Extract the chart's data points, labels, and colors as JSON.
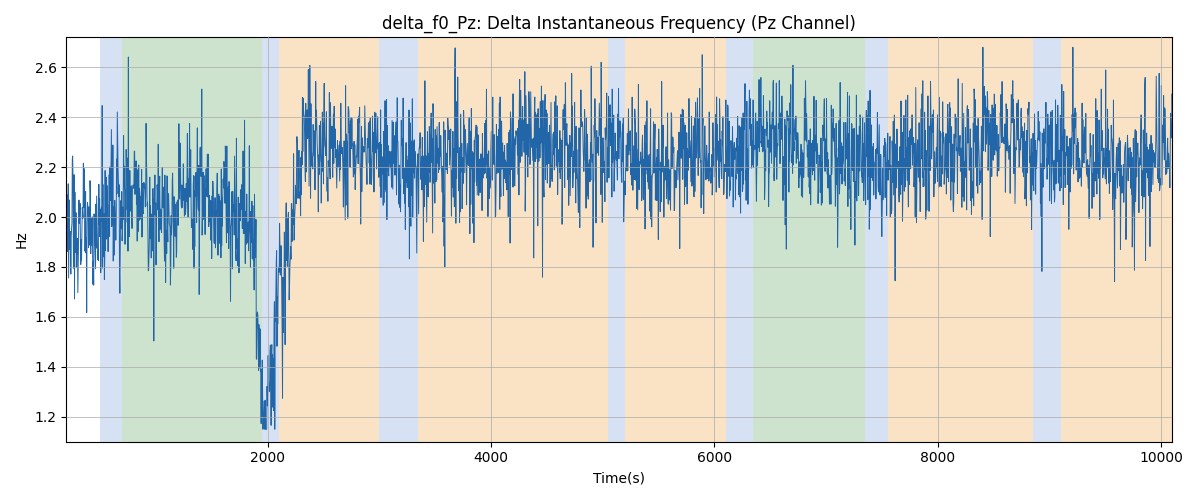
{
  "title": "delta_f0_Pz: Delta Instantaneous Frequency (Pz Channel)",
  "xlabel": "Time(s)",
  "ylabel": "Hz",
  "xlim": [
    200,
    10100
  ],
  "ylim": [
    1.1,
    2.72
  ],
  "line_color": "#2266aa",
  "line_width": 0.7,
  "bg_color": "white",
  "grid_color": "#aaaaaa",
  "regions": [
    {
      "start": 500,
      "end": 700,
      "color": "#aec6e8",
      "alpha": 0.5
    },
    {
      "start": 700,
      "end": 1950,
      "color": "#9fc99f",
      "alpha": 0.5
    },
    {
      "start": 1950,
      "end": 2100,
      "color": "#aec6e8",
      "alpha": 0.5
    },
    {
      "start": 2100,
      "end": 3000,
      "color": "#f5c98a",
      "alpha": 0.5
    },
    {
      "start": 3000,
      "end": 3350,
      "color": "#aec6e8",
      "alpha": 0.5
    },
    {
      "start": 3350,
      "end": 5050,
      "color": "#f5c98a",
      "alpha": 0.5
    },
    {
      "start": 5050,
      "end": 5200,
      "color": "#aec6e8",
      "alpha": 0.5
    },
    {
      "start": 5200,
      "end": 6100,
      "color": "#f5c98a",
      "alpha": 0.5
    },
    {
      "start": 6100,
      "end": 6350,
      "color": "#aec6e8",
      "alpha": 0.5
    },
    {
      "start": 6350,
      "end": 7350,
      "color": "#9fc99f",
      "alpha": 0.5
    },
    {
      "start": 7350,
      "end": 7550,
      "color": "#aec6e8",
      "alpha": 0.5
    },
    {
      "start": 7550,
      "end": 8850,
      "color": "#f5c98a",
      "alpha": 0.5
    },
    {
      "start": 8850,
      "end": 9100,
      "color": "#aec6e8",
      "alpha": 0.5
    },
    {
      "start": 9100,
      "end": 10100,
      "color": "#f5c98a",
      "alpha": 0.5
    }
  ],
  "seed": 123,
  "n_points": 3000,
  "t_start": 200,
  "t_end": 10100,
  "title_fontsize": 12
}
